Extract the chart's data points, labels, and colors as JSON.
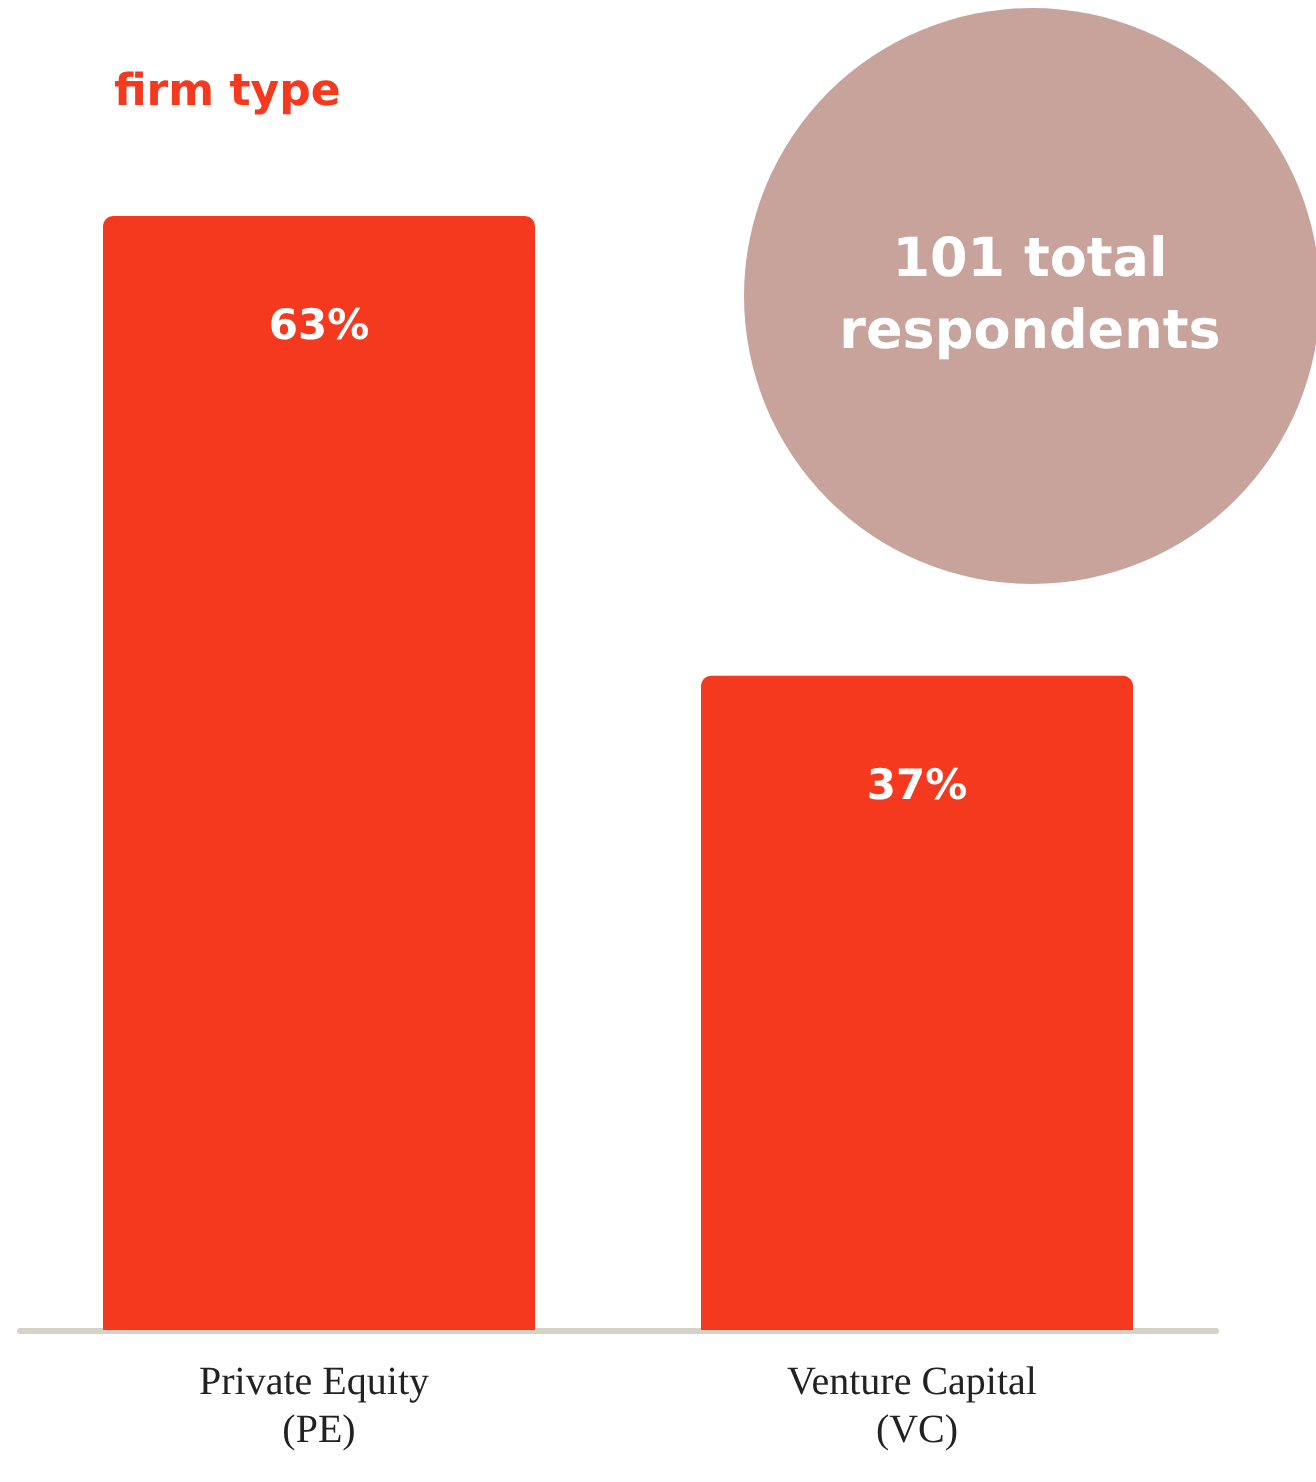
{
  "chart_data": {
    "type": "bar",
    "title": "firm type",
    "categories": [
      "Private Equity (PE)",
      "Venture Capital (VC)"
    ],
    "values": [
      63,
      37
    ],
    "value_labels": [
      "63%",
      "37%"
    ],
    "color": "#f4391f",
    "ylim": [
      0,
      63
    ],
    "annotations": [
      "101 total respondents"
    ],
    "tick_labels": "x"
  }
}
